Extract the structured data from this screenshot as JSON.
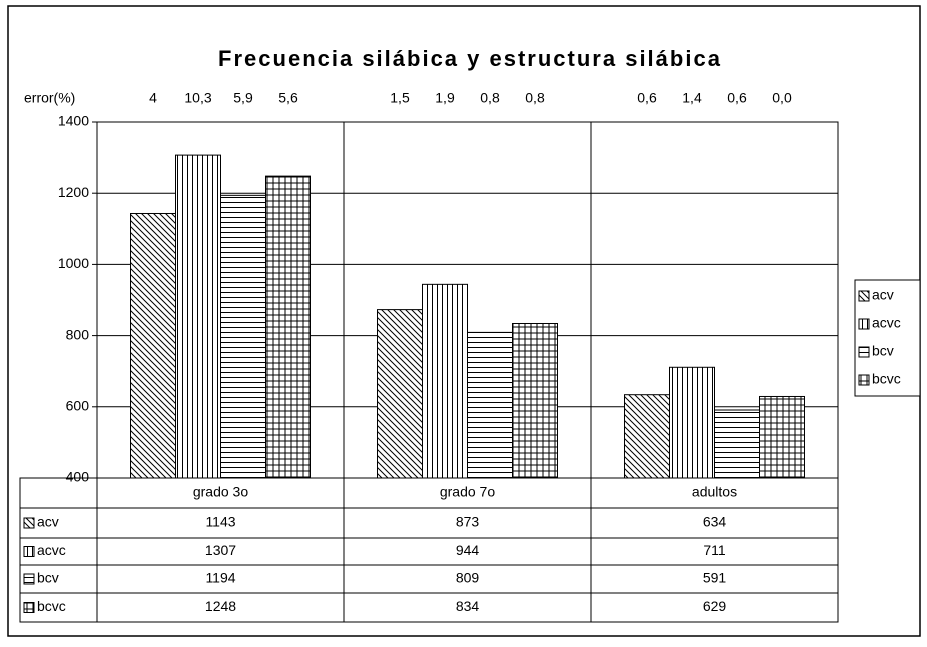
{
  "chart_data": {
    "type": "bar",
    "title": "Frecuencia silábica y estructura silábica",
    "error_label": "error(%)",
    "categories": [
      "grado 3o",
      "grado 7o",
      "adultos"
    ],
    "series": [
      {
        "name": "acv",
        "color": "#000000",
        "pattern": "diagonal",
        "values": [
          1143,
          873,
          634
        ],
        "error_labels": [
          "4",
          "1,5",
          "0,6"
        ]
      },
      {
        "name": "acvc",
        "color": "#000000",
        "pattern": "vertical",
        "values": [
          1307,
          944,
          711
        ],
        "error_labels": [
          "10,3",
          "1,9",
          "1,4"
        ]
      },
      {
        "name": "bcv",
        "color": "#000000",
        "pattern": "horizontal",
        "values": [
          1194,
          809,
          591
        ],
        "error_labels": [
          "5,9",
          "0,8",
          "0,6"
        ]
      },
      {
        "name": "bcvc",
        "color": "#000000",
        "pattern": "grid",
        "values": [
          1248,
          834,
          629
        ],
        "error_labels": [
          "5,6",
          "0,8",
          "0,0"
        ]
      }
    ],
    "ylim": [
      400,
      1400
    ],
    "yticks": [
      400,
      600,
      800,
      1000,
      1200,
      1400
    ],
    "grid": true,
    "legend": "right"
  }
}
